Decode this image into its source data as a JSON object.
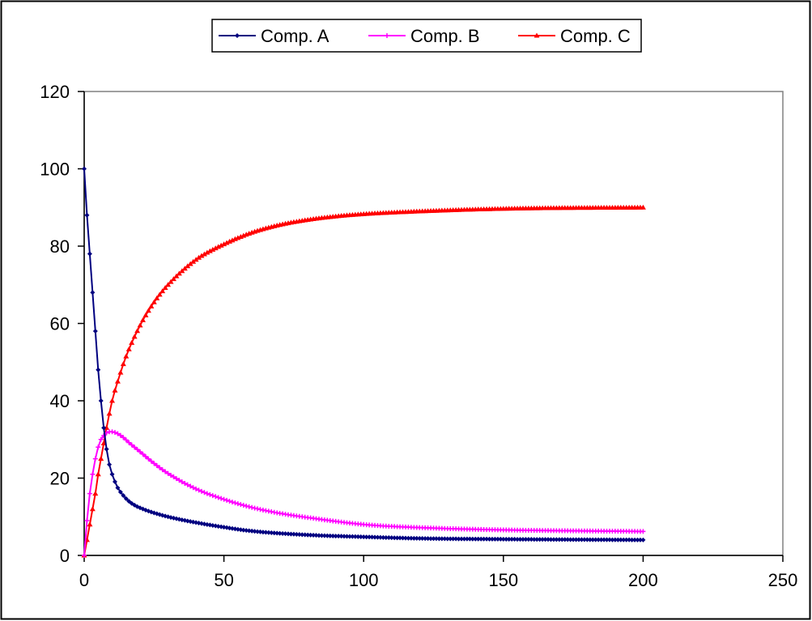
{
  "chart_data": {
    "type": "line",
    "title": "",
    "xlabel": "",
    "ylabel": "",
    "xlim": [
      0,
      250
    ],
    "ylim": [
      0,
      120
    ],
    "x_ticks": [
      0,
      50,
      100,
      150,
      200,
      250
    ],
    "y_ticks": [
      0,
      20,
      40,
      60,
      80,
      100,
      120
    ],
    "grid": false,
    "legend_position": "top",
    "series": [
      {
        "name": "Comp. A",
        "color": "#000080",
        "marker": "diamond",
        "x": [
          0,
          1,
          2,
          3,
          4,
          5,
          6,
          7,
          8,
          9,
          10,
          12,
          14,
          16,
          18,
          20,
          25,
          30,
          40,
          50,
          60,
          80,
          100,
          120,
          150,
          200
        ],
        "y": [
          100,
          88,
          78,
          68,
          58,
          48,
          40,
          33,
          27.5,
          23.5,
          21,
          17.5,
          15.5,
          14,
          13,
          12.3,
          11,
          10,
          8.5,
          7.3,
          6.3,
          5.3,
          4.8,
          4.4,
          4.2,
          4.0
        ]
      },
      {
        "name": "Comp. B",
        "color": "#FF00FF",
        "marker": "cross",
        "x": [
          0,
          1,
          2,
          3,
          4,
          5,
          6,
          7,
          8,
          9,
          10,
          11,
          12,
          14,
          16,
          20,
          25,
          30,
          40,
          50,
          60,
          70,
          80,
          100,
          120,
          150,
          200
        ],
        "y": [
          0,
          9,
          16,
          21,
          25,
          28,
          30,
          31,
          31.7,
          32,
          32,
          31.8,
          31.5,
          30.5,
          29.2,
          26.8,
          23.8,
          21.2,
          17.2,
          14.5,
          12.4,
          10.9,
          9.8,
          8.0,
          7.2,
          6.6,
          6.2
        ]
      },
      {
        "name": "Comp. C",
        "color": "#FF0000",
        "marker": "triangle",
        "x": [
          0,
          1,
          2,
          3,
          4,
          5,
          6,
          7,
          8,
          10,
          12,
          15,
          20,
          25,
          30,
          40,
          50,
          60,
          70,
          80,
          90,
          100,
          120,
          140,
          160,
          200
        ],
        "y": [
          0,
          4,
          8,
          12,
          16,
          21,
          25,
          29,
          33,
          40,
          45,
          51.5,
          59.5,
          65.5,
          70,
          76.5,
          80.5,
          83.5,
          85.5,
          86.8,
          87.7,
          88.3,
          89,
          89.5,
          89.8,
          90
        ]
      }
    ]
  }
}
